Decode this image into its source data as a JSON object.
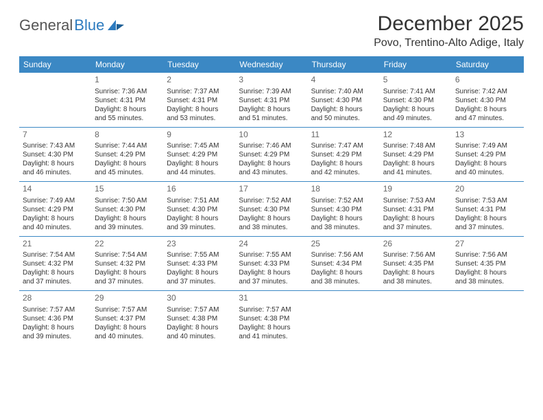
{
  "brand": {
    "part1": "General",
    "part2": "Blue"
  },
  "title": "December 2025",
  "location": "Povo, Trentino-Alto Adige, Italy",
  "colors": {
    "header_bg": "#3b88c4",
    "header_text": "#ffffff",
    "rule": "#3b88c4",
    "brand_gray": "#555555",
    "brand_blue": "#2d7bbf",
    "body_text": "#333333",
    "daynum": "#666666",
    "background": "#ffffff"
  },
  "typography": {
    "title_fontsize": 30,
    "location_fontsize": 16,
    "dayheader_fontsize": 12,
    "daynum_fontsize": 12,
    "cell_fontsize": 10,
    "logo_fontsize": 22
  },
  "day_names": [
    "Sunday",
    "Monday",
    "Tuesday",
    "Wednesday",
    "Thursday",
    "Friday",
    "Saturday"
  ],
  "weeks": [
    [
      {
        "n": "",
        "sunrise": "",
        "sunset": "",
        "day_a": "",
        "day_b": ""
      },
      {
        "n": "1",
        "sunrise": "Sunrise: 7:36 AM",
        "sunset": "Sunset: 4:31 PM",
        "day_a": "Daylight: 8 hours",
        "day_b": "and 55 minutes."
      },
      {
        "n": "2",
        "sunrise": "Sunrise: 7:37 AM",
        "sunset": "Sunset: 4:31 PM",
        "day_a": "Daylight: 8 hours",
        "day_b": "and 53 minutes."
      },
      {
        "n": "3",
        "sunrise": "Sunrise: 7:39 AM",
        "sunset": "Sunset: 4:31 PM",
        "day_a": "Daylight: 8 hours",
        "day_b": "and 51 minutes."
      },
      {
        "n": "4",
        "sunrise": "Sunrise: 7:40 AM",
        "sunset": "Sunset: 4:30 PM",
        "day_a": "Daylight: 8 hours",
        "day_b": "and 50 minutes."
      },
      {
        "n": "5",
        "sunrise": "Sunrise: 7:41 AM",
        "sunset": "Sunset: 4:30 PM",
        "day_a": "Daylight: 8 hours",
        "day_b": "and 49 minutes."
      },
      {
        "n": "6",
        "sunrise": "Sunrise: 7:42 AM",
        "sunset": "Sunset: 4:30 PM",
        "day_a": "Daylight: 8 hours",
        "day_b": "and 47 minutes."
      }
    ],
    [
      {
        "n": "7",
        "sunrise": "Sunrise: 7:43 AM",
        "sunset": "Sunset: 4:30 PM",
        "day_a": "Daylight: 8 hours",
        "day_b": "and 46 minutes."
      },
      {
        "n": "8",
        "sunrise": "Sunrise: 7:44 AM",
        "sunset": "Sunset: 4:29 PM",
        "day_a": "Daylight: 8 hours",
        "day_b": "and 45 minutes."
      },
      {
        "n": "9",
        "sunrise": "Sunrise: 7:45 AM",
        "sunset": "Sunset: 4:29 PM",
        "day_a": "Daylight: 8 hours",
        "day_b": "and 44 minutes."
      },
      {
        "n": "10",
        "sunrise": "Sunrise: 7:46 AM",
        "sunset": "Sunset: 4:29 PM",
        "day_a": "Daylight: 8 hours",
        "day_b": "and 43 minutes."
      },
      {
        "n": "11",
        "sunrise": "Sunrise: 7:47 AM",
        "sunset": "Sunset: 4:29 PM",
        "day_a": "Daylight: 8 hours",
        "day_b": "and 42 minutes."
      },
      {
        "n": "12",
        "sunrise": "Sunrise: 7:48 AM",
        "sunset": "Sunset: 4:29 PM",
        "day_a": "Daylight: 8 hours",
        "day_b": "and 41 minutes."
      },
      {
        "n": "13",
        "sunrise": "Sunrise: 7:49 AM",
        "sunset": "Sunset: 4:29 PM",
        "day_a": "Daylight: 8 hours",
        "day_b": "and 40 minutes."
      }
    ],
    [
      {
        "n": "14",
        "sunrise": "Sunrise: 7:49 AM",
        "sunset": "Sunset: 4:29 PM",
        "day_a": "Daylight: 8 hours",
        "day_b": "and 40 minutes."
      },
      {
        "n": "15",
        "sunrise": "Sunrise: 7:50 AM",
        "sunset": "Sunset: 4:30 PM",
        "day_a": "Daylight: 8 hours",
        "day_b": "and 39 minutes."
      },
      {
        "n": "16",
        "sunrise": "Sunrise: 7:51 AM",
        "sunset": "Sunset: 4:30 PM",
        "day_a": "Daylight: 8 hours",
        "day_b": "and 39 minutes."
      },
      {
        "n": "17",
        "sunrise": "Sunrise: 7:52 AM",
        "sunset": "Sunset: 4:30 PM",
        "day_a": "Daylight: 8 hours",
        "day_b": "and 38 minutes."
      },
      {
        "n": "18",
        "sunrise": "Sunrise: 7:52 AM",
        "sunset": "Sunset: 4:30 PM",
        "day_a": "Daylight: 8 hours",
        "day_b": "and 38 minutes."
      },
      {
        "n": "19",
        "sunrise": "Sunrise: 7:53 AM",
        "sunset": "Sunset: 4:31 PM",
        "day_a": "Daylight: 8 hours",
        "day_b": "and 37 minutes."
      },
      {
        "n": "20",
        "sunrise": "Sunrise: 7:53 AM",
        "sunset": "Sunset: 4:31 PM",
        "day_a": "Daylight: 8 hours",
        "day_b": "and 37 minutes."
      }
    ],
    [
      {
        "n": "21",
        "sunrise": "Sunrise: 7:54 AM",
        "sunset": "Sunset: 4:32 PM",
        "day_a": "Daylight: 8 hours",
        "day_b": "and 37 minutes."
      },
      {
        "n": "22",
        "sunrise": "Sunrise: 7:54 AM",
        "sunset": "Sunset: 4:32 PM",
        "day_a": "Daylight: 8 hours",
        "day_b": "and 37 minutes."
      },
      {
        "n": "23",
        "sunrise": "Sunrise: 7:55 AM",
        "sunset": "Sunset: 4:33 PM",
        "day_a": "Daylight: 8 hours",
        "day_b": "and 37 minutes."
      },
      {
        "n": "24",
        "sunrise": "Sunrise: 7:55 AM",
        "sunset": "Sunset: 4:33 PM",
        "day_a": "Daylight: 8 hours",
        "day_b": "and 37 minutes."
      },
      {
        "n": "25",
        "sunrise": "Sunrise: 7:56 AM",
        "sunset": "Sunset: 4:34 PM",
        "day_a": "Daylight: 8 hours",
        "day_b": "and 38 minutes."
      },
      {
        "n": "26",
        "sunrise": "Sunrise: 7:56 AM",
        "sunset": "Sunset: 4:35 PM",
        "day_a": "Daylight: 8 hours",
        "day_b": "and 38 minutes."
      },
      {
        "n": "27",
        "sunrise": "Sunrise: 7:56 AM",
        "sunset": "Sunset: 4:35 PM",
        "day_a": "Daylight: 8 hours",
        "day_b": "and 38 minutes."
      }
    ],
    [
      {
        "n": "28",
        "sunrise": "Sunrise: 7:57 AM",
        "sunset": "Sunset: 4:36 PM",
        "day_a": "Daylight: 8 hours",
        "day_b": "and 39 minutes."
      },
      {
        "n": "29",
        "sunrise": "Sunrise: 7:57 AM",
        "sunset": "Sunset: 4:37 PM",
        "day_a": "Daylight: 8 hours",
        "day_b": "and 40 minutes."
      },
      {
        "n": "30",
        "sunrise": "Sunrise: 7:57 AM",
        "sunset": "Sunset: 4:38 PM",
        "day_a": "Daylight: 8 hours",
        "day_b": "and 40 minutes."
      },
      {
        "n": "31",
        "sunrise": "Sunrise: 7:57 AM",
        "sunset": "Sunset: 4:38 PM",
        "day_a": "Daylight: 8 hours",
        "day_b": "and 41 minutes."
      },
      {
        "n": "",
        "sunrise": "",
        "sunset": "",
        "day_a": "",
        "day_b": ""
      },
      {
        "n": "",
        "sunrise": "",
        "sunset": "",
        "day_a": "",
        "day_b": ""
      },
      {
        "n": "",
        "sunrise": "",
        "sunset": "",
        "day_a": "",
        "day_b": ""
      }
    ]
  ]
}
